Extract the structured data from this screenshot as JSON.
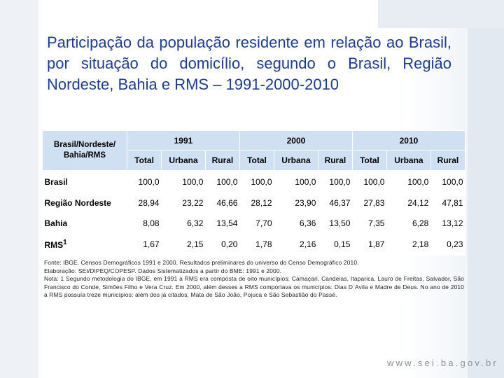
{
  "title": "Participação da população residente em relação ao Brasil, por situação do domicílio, segundo o Brasil, Região Nordeste, Bahia e RMS – 1991-2000-2010",
  "table": {
    "corner": "Brasil/Nordeste/ Bahia/RMS",
    "years": [
      "1991",
      "2000",
      "2010"
    ],
    "subheaders": [
      "Total",
      "Urbana",
      "Rural"
    ],
    "rows": [
      {
        "label": "Brasil",
        "values": [
          "100,0",
          "100,0",
          "100,0",
          "100,0",
          "100,0",
          "100,0",
          "100,0",
          "100,0",
          "100,0"
        ]
      },
      {
        "label": "Região Nordeste",
        "values": [
          "28,94",
          "23,22",
          "46,66",
          "28,12",
          "23,90",
          "46,37",
          "27,83",
          "24,12",
          "47,81"
        ]
      },
      {
        "label": "Bahia",
        "values": [
          "8,08",
          "6,32",
          "13,54",
          "7,70",
          "6,36",
          "13,50",
          "7,35",
          "6,28",
          "13,12"
        ]
      },
      {
        "label": "RMS",
        "sup": "1",
        "values": [
          "1,67",
          "2,15",
          "0,20",
          "1,78",
          "2,16",
          "0,15",
          "1,87",
          "2,18",
          "0,23"
        ]
      }
    ]
  },
  "notes": [
    "Fonte: IBGE. Censos Demográficos 1991 e 2000. Resultados preliminares do universo do Censo Demográfico 2010.",
    "Elaboração: SEI/DIPEQ/COPESP. Dados Sistematizados a partir do BME: 1991 e 2000.",
    "Nota: 1 Segundo metodologia do IBGE, em 1991 a RMS era composta de oito municípios: Camaçari, Candeias, Itaparica, Lauro de Freitas, Salvador, São Francisco do Conde, Simões Filho e Vera Cruz. Em 2000, além desses a RMS comportava os municípios: Dias D´Avila e Madre de Deus. No ano de 2010 a RMS possuía treze municípios: além dos já citados, Mata de São João, Pojuca e São Sebastião do Passé."
  ],
  "footer": "www.sei.ba.gov.br"
}
